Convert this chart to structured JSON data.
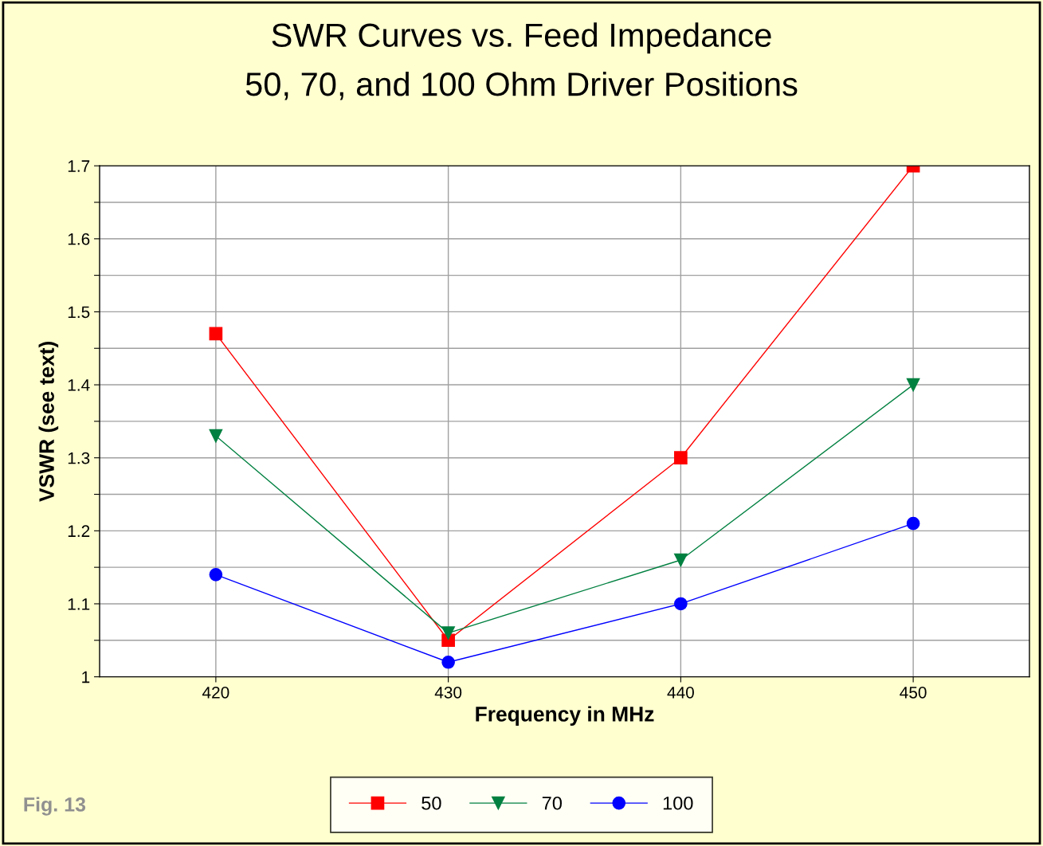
{
  "chart_data": {
    "type": "line",
    "title": "SWR Curves vs. Feed Impedance",
    "subtitle": "50, 70, and 100 Ohm Driver Positions",
    "xlabel": "Frequency in MHz",
    "ylabel": "VSWR (see text)",
    "x": [
      420,
      430,
      440,
      450
    ],
    "series": [
      {
        "name": "50",
        "color": "#ff0000",
        "marker": "square",
        "values": [
          1.47,
          1.05,
          1.3,
          1.7
        ]
      },
      {
        "name": "70",
        "color": "#008040",
        "marker": "triangle",
        "values": [
          1.33,
          1.06,
          1.16,
          1.4
        ]
      },
      {
        "name": "100",
        "color": "#0000ff",
        "marker": "circle",
        "values": [
          1.14,
          1.02,
          1.1,
          1.21
        ]
      }
    ],
    "xlim": [
      415,
      455
    ],
    "xticks": [
      420,
      430,
      440,
      450
    ],
    "ylim": [
      1,
      1.7
    ],
    "yticks": [
      1,
      {
        "value": 1.05,
        "label": null
      },
      1.1,
      {
        "value": 1.15,
        "label": null
      },
      1.2,
      {
        "value": 1.25,
        "label": null
      },
      1.3,
      {
        "value": 1.35,
        "label": null
      },
      1.4,
      {
        "value": 1.45,
        "label": null
      },
      1.5,
      {
        "value": 1.55,
        "label": null
      },
      1.6,
      {
        "value": 1.65,
        "label": null
      },
      1.7
    ],
    "grid": true,
    "legend": "bottom",
    "line_style": "solid",
    "annotations": [
      "Fig. 13"
    ]
  }
}
